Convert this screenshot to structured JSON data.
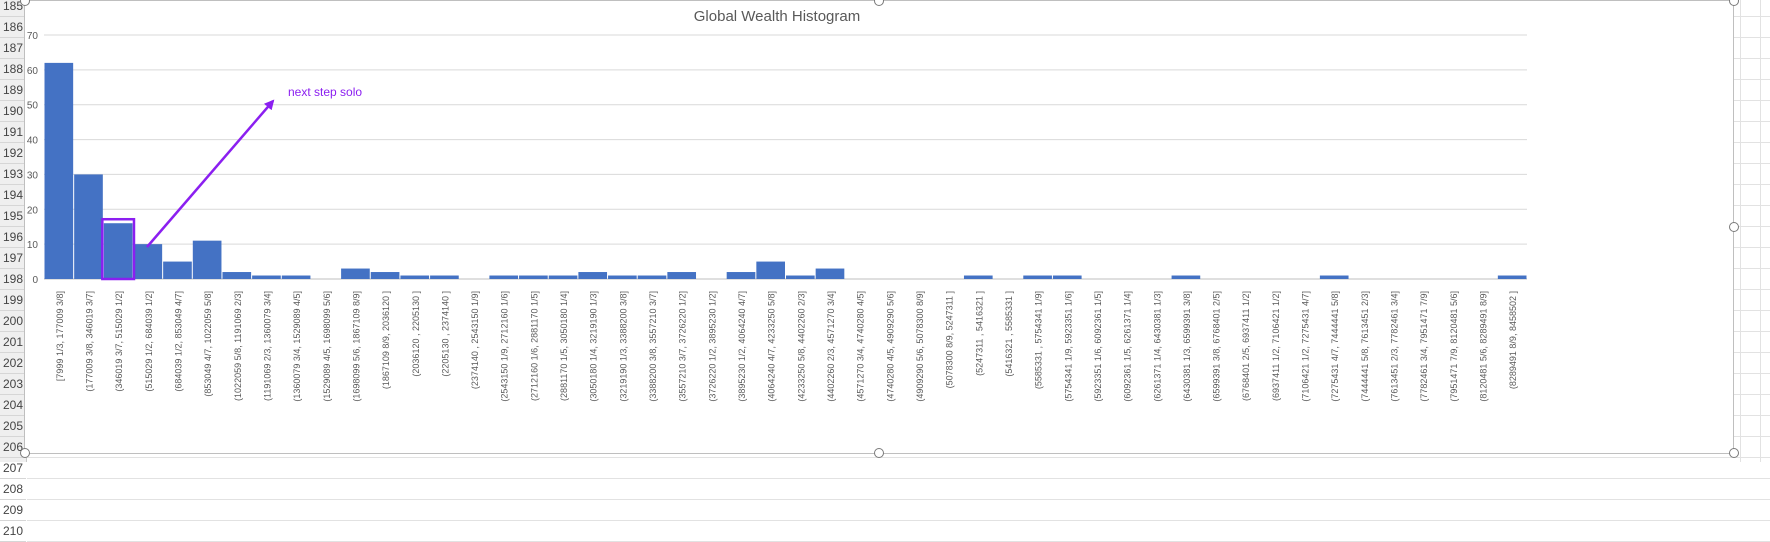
{
  "spreadsheet": {
    "row_numbers": [
      "185",
      "186",
      "187",
      "188",
      "189",
      "190",
      "191",
      "192",
      "193",
      "194",
      "195",
      "196",
      "197",
      "198",
      "199",
      "200",
      "201",
      "202",
      "203",
      "204",
      "205",
      "206",
      "207",
      "208",
      "209",
      "210"
    ]
  },
  "chart_data": {
    "type": "bar",
    "title": "Global Wealth Histogram",
    "xlabel": "",
    "ylabel": "",
    "ylim": [
      0,
      70
    ],
    "yticks": [
      "0",
      "10",
      "20",
      "30",
      "40",
      "50",
      "60",
      "70"
    ],
    "gridlines": true,
    "categories": [
      "[7999 1/3, 177009 3/8]",
      "(177009 3/8, 346019 3/7]",
      "(346019 3/7, 515029 1/2]",
      "(515029 1/2, 684039 1/2]",
      "(684039 1/2, 853049 4/7]",
      "(853049 4/7, 1022059 5/8]",
      "(1022059 5/8, 1191069 2/3]",
      "(1191069 2/3, 1360079 3/4]",
      "(1360079 3/4, 1529089 4/5]",
      "(1529089 4/5, 1698099 5/6]",
      "(1698099 5/6, 1867109 8/9]",
      "(1867109 8/9, 2036120    ]",
      "(2036120    , 2205130    ]",
      "(2205130    , 2374140    ]",
      "(2374140    , 2543150 1/9]",
      "(2543150 1/9, 2712160 1/6]",
      "(2712160 1/6, 2881170 1/5]",
      "(2881170 1/5, 3050180 1/4]",
      "(3050180 1/4, 3219190 1/3]",
      "(3219190 1/3, 3388200 3/8]",
      "(3388200 3/8, 3557210 3/7]",
      "(3557210 3/7, 3726220 1/2]",
      "(3726220 1/2, 3895230 1/2]",
      "(3895230 1/2, 4064240 4/7]",
      "(4064240 4/7, 4233250 5/8]",
      "(4233250 5/8, 4402260 2/3]",
      "(4402260 2/3, 4571270 3/4]",
      "(4571270 3/4, 4740280 4/5]",
      "(4740280 4/5, 4909290 5/6]",
      "(4909290 5/6, 5078300 8/9]",
      "(5078300 8/9, 5247311    ]",
      "(5247311    , 5416321    ]",
      "(5416321    , 5585331    ]",
      "(5585331    , 5754341 1/9]",
      "(5754341 1/9, 5923351 1/6]",
      "(5923351 1/6, 6092361 1/5]",
      "(6092361 1/5, 6261371 1/4]",
      "(6261371 1/4, 6430381 1/3]",
      "(6430381 1/3, 6599391 3/8]",
      "(6599391 3/8, 6768401 2/5]",
      "(6768401 2/5, 6937411 1/2]",
      "(6937411 1/2, 7106421 1/2]",
      "(7106421 1/2, 7275431 4/7]",
      "(7275431 4/7, 7444441 5/8]",
      "(7444441 5/8, 7613451 2/3]",
      "(7613451 2/3, 7782461 3/4]",
      "(7782461 3/4, 7951471 7/9]",
      "(7951471 7/9, 8120481 5/6]",
      "(8120481 5/6, 8289491 8/9]",
      "(8289491 8/9, 8458502    ]"
    ],
    "values": [
      62,
      30,
      16,
      10,
      5,
      11,
      2,
      1,
      1,
      0,
      3,
      2,
      1,
      1,
      0,
      1,
      1,
      1,
      2,
      1,
      1,
      2,
      0,
      2,
      5,
      1,
      3,
      0,
      0,
      0,
      0,
      1,
      0,
      1,
      1,
      0,
      0,
      0,
      1,
      0,
      0,
      0,
      0,
      1,
      0,
      0,
      0,
      0,
      0,
      1
    ],
    "bar_color": "#4472c4",
    "highlight": {
      "category_index": 2,
      "color": "#8b1ff0"
    },
    "annotation": {
      "text": "next step solo",
      "color": "#8b1ff0"
    }
  }
}
